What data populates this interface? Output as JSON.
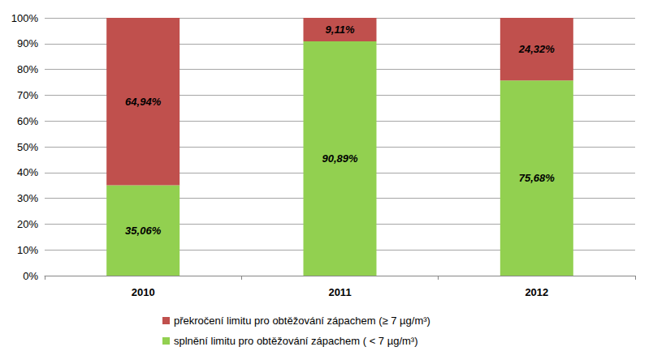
{
  "chart_data": {
    "type": "bar",
    "stacked": true,
    "data_labels": true,
    "grid": true,
    "legend": "bottom",
    "categories": [
      "2010",
      "2011",
      "2012"
    ],
    "ylim": [
      0,
      100
    ],
    "yticks": [
      {
        "value": 0,
        "label": "0%"
      },
      {
        "value": 10,
        "label": "10%"
      },
      {
        "value": 20,
        "label": "20%"
      },
      {
        "value": 30,
        "label": "30%"
      },
      {
        "value": 40,
        "label": "40%"
      },
      {
        "value": 50,
        "label": "50%"
      },
      {
        "value": 60,
        "label": "60%"
      },
      {
        "value": 70,
        "label": "70%"
      },
      {
        "value": 80,
        "label": "80%"
      },
      {
        "value": 90,
        "label": "90%"
      },
      {
        "value": 100,
        "label": "100%"
      }
    ],
    "series": [
      {
        "name": "překročení limitu pro obtěžování zápachem (≥ 7 µg/m³)",
        "color": "#c0504d",
        "values": [
          64.94,
          9.11,
          24.32
        ],
        "value_labels": [
          "64,94%",
          "9,11%",
          "24,32%"
        ]
      },
      {
        "name": "splnění limitu pro obtěžování zápachem ( < 7 µg/m³)",
        "color": "#92d050",
        "values": [
          35.06,
          90.89,
          75.68
        ],
        "value_labels": [
          "35,06%",
          "90,89%",
          "75,68%"
        ]
      }
    ]
  }
}
